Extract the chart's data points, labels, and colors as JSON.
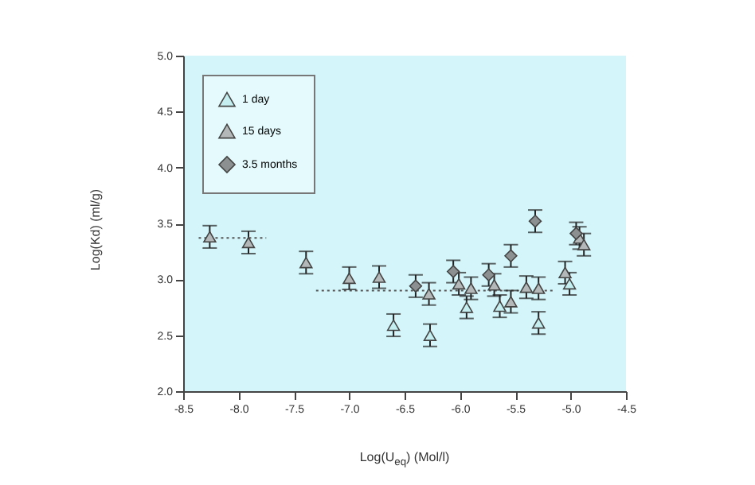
{
  "chart_data": {
    "type": "scatter",
    "xlabel": "Log(U$_{eq}$) (Mol/l)",
    "ylabel": "Log(Kd) (ml/g)",
    "xlim": [
      -8.5,
      -4.5
    ],
    "ylim": [
      2.0,
      5.0
    ],
    "xticks": [
      {
        "value": -8.5,
        "label": "-8.5"
      },
      {
        "value": -8,
        "label": "-8.0"
      },
      {
        "value": -7.5,
        "label": "-7.5"
      },
      {
        "value": -7,
        "label": "-7.0"
      },
      {
        "value": -6.5,
        "label": "-6.5"
      },
      {
        "value": -6,
        "label": "-6.0"
      },
      {
        "value": -5.5,
        "label": "-5.5"
      },
      {
        "value": -5,
        "label": "-5.0"
      },
      {
        "value": -4.5,
        "label": "-4.5"
      }
    ],
    "yticks": [
      {
        "value": 2,
        "label": "2.0"
      },
      {
        "value": 2.5,
        "label": "2.5"
      },
      {
        "value": 3,
        "label": "3.0"
      },
      {
        "value": 3.5,
        "label": "3.5"
      },
      {
        "value": 4,
        "label": "4.0"
      },
      {
        "value": 4.5,
        "label": "4.5"
      },
      {
        "value": 5,
        "label": "5.0"
      }
    ],
    "grid": false,
    "legend": "top left",
    "series": [
      {
        "name": "1 day",
        "color": "#c4eef0",
        "marker": "triangle",
        "x": [
          -6.6,
          -6.27,
          -5.94,
          -5.64,
          -5.29,
          -5.01
        ],
        "values": [
          2.59,
          2.5,
          2.75,
          2.76,
          2.61,
          2.96
        ],
        "errors": [
          0.1,
          0.1,
          0.1,
          0.1,
          0.1,
          0.1
        ]
      },
      {
        "name": "15 days",
        "color": "#b4b8b8",
        "marker": "triangle",
        "x": [
          -8.26,
          -7.91,
          -7.39,
          -7.0,
          -6.73,
          -6.28,
          -6.01,
          -5.9,
          -5.69,
          -5.54,
          -5.4,
          -5.29,
          -5.05,
          -4.92,
          -4.88
        ],
        "values": [
          3.38,
          3.33,
          3.15,
          3.01,
          3.02,
          2.87,
          2.96,
          2.92,
          2.95,
          2.8,
          2.93,
          2.92,
          3.06,
          3.37,
          3.31
        ],
        "errors": [
          0.1,
          0.1,
          0.1,
          0.1,
          0.1,
          0.1,
          0.1,
          0.1,
          0.1,
          0.1,
          0.1,
          0.1,
          0.1,
          0.1,
          0.1
        ]
      },
      {
        "name": "3.5 months",
        "color": "#8c9090",
        "marker": "diamond",
        "x": [
          -6.4,
          -6.06,
          -5.74,
          -5.54,
          -5.32,
          -4.95
        ],
        "values": [
          2.94,
          3.07,
          3.04,
          3.21,
          3.52,
          3.41
        ],
        "errors": [
          0.1,
          0.1,
          0.1,
          0.1,
          0.1,
          0.1
        ]
      },
      {
        "type": "line",
        "color": "#555555",
        "line_style": "dotted",
        "marker": "none",
        "x": [
          -8.36,
          -7.75
        ],
        "values": [
          3.37,
          3.37
        ]
      },
      {
        "type": "line",
        "color": "#555555",
        "line_style": "dotted",
        "marker": "none",
        "x": [
          -7.3,
          -5.15
        ],
        "values": [
          2.9,
          2.9
        ]
      }
    ]
  }
}
